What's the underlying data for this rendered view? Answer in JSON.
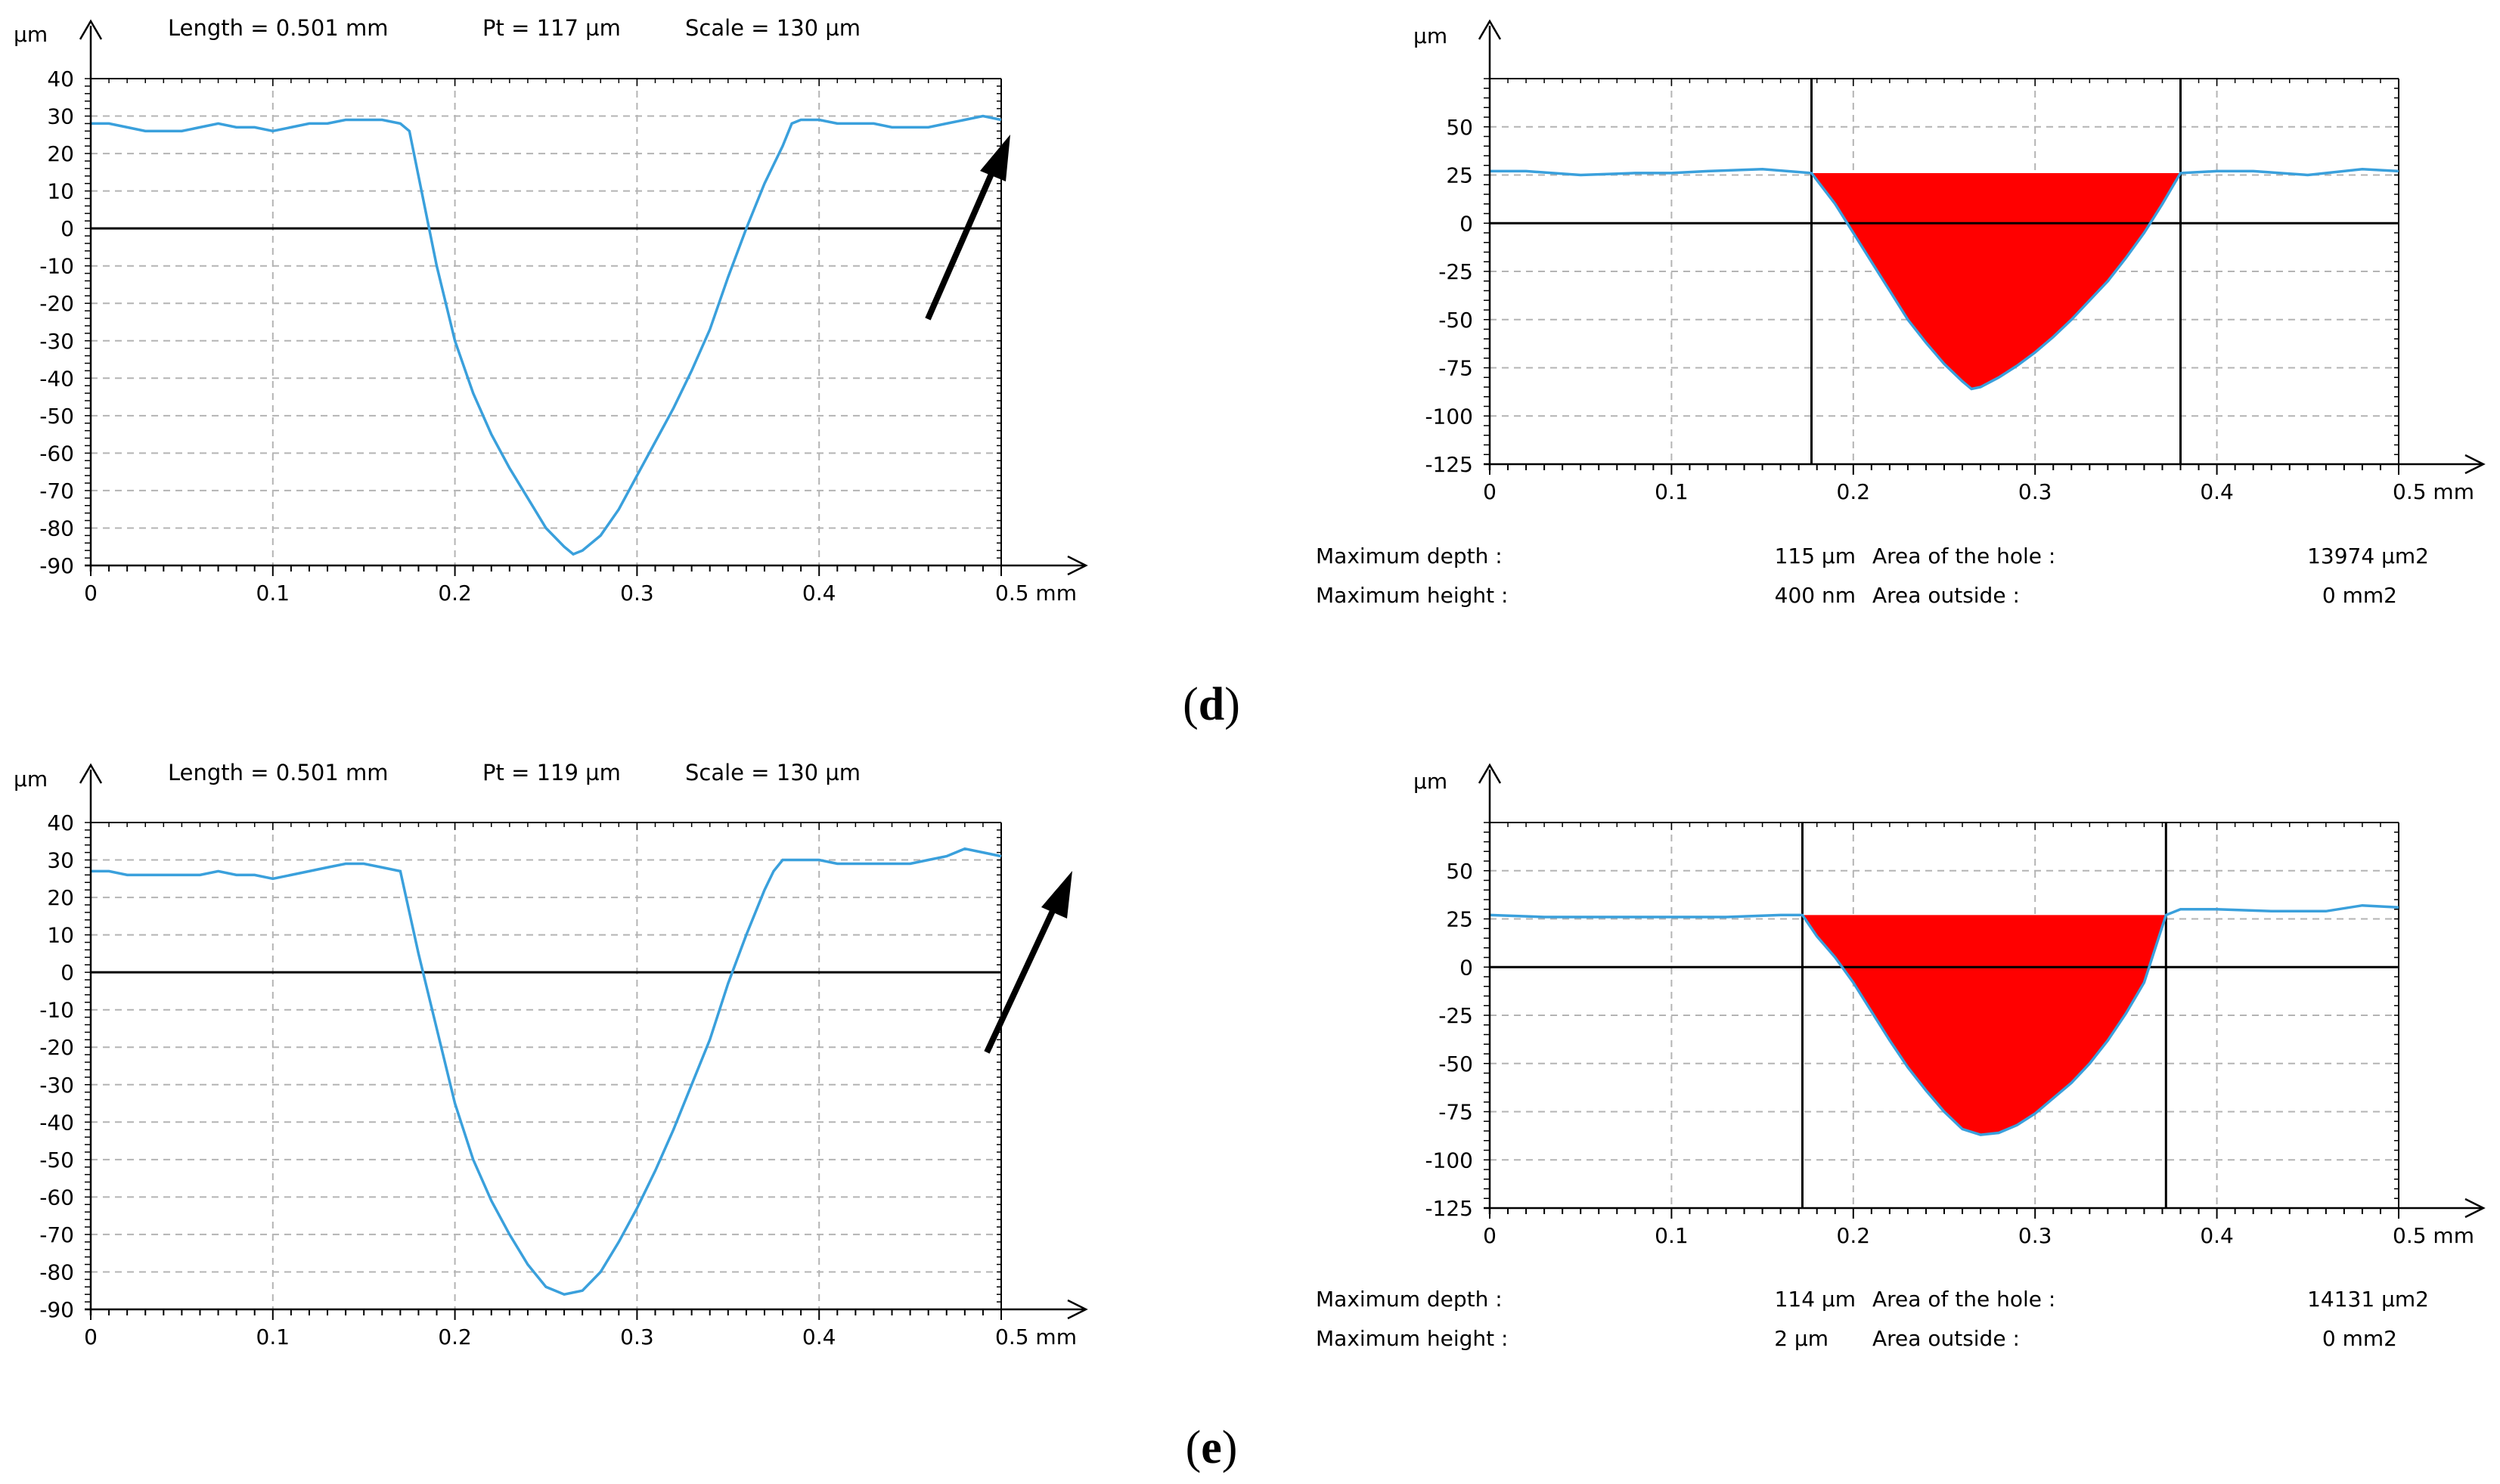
{
  "colors": {
    "profile": "#3aa0dc",
    "hole_fill": "#ff0000",
    "axis": "#000000",
    "grid": "#b4b4b4"
  },
  "panels": [
    {
      "label_open": "(",
      "label": "d",
      "label_close": ")",
      "left": {
        "ylabel": "µm",
        "xunit": "mm",
        "header": [
          "Length = 0.501 mm",
          "Pt = 117 µm",
          "Scale = 130 µm"
        ]
      },
      "right": {
        "ylabel": "µm",
        "xunit": "mm",
        "stats": [
          {
            "label": "Maximum depth :",
            "value": "115 µm",
            "label2": "Area of the hole :",
            "value2": "13974 µm2"
          },
          {
            "label": "Maximum height :",
            "value": "400 nm",
            "label2": "Area outside :",
            "value2": "0 mm2"
          }
        ]
      }
    },
    {
      "label_open": "(",
      "label": "e",
      "label_close": ")",
      "left": {
        "ylabel": "µm",
        "xunit": "mm",
        "header": [
          "Length = 0.501 mm",
          "Pt = 119 µm",
          "Scale = 130 µm"
        ]
      },
      "right": {
        "ylabel": "µm",
        "xunit": "mm",
        "stats": [
          {
            "label": "Maximum depth :",
            "value": "114 µm",
            "label2": "Area of the hole :",
            "value2": "14131 µm2"
          },
          {
            "label": "Maximum height :",
            "value": "2 µm",
            "label2": "Area outside :",
            "value2": "0 mm2"
          }
        ]
      }
    }
  ],
  "chart_data": [
    {
      "type": "line",
      "panel": "d-left",
      "title": "Length = 0.501 mm  Pt = 117 µm  Scale = 130 µm",
      "xlabel": "mm",
      "ylabel": "µm",
      "xlim": [
        0,
        0.5
      ],
      "ylim": [
        -90,
        40
      ],
      "xticks": [
        0,
        0.1,
        0.2,
        0.3,
        0.4,
        0.5
      ],
      "xtick_labels": [
        "0",
        "0.1",
        "0.2",
        "0.3",
        "0.4",
        "0.5 mm"
      ],
      "yticks": [
        40,
        30,
        20,
        10,
        0,
        -10,
        -20,
        -30,
        -40,
        -50,
        -60,
        -70,
        -80,
        -90
      ],
      "ytick_labels": [
        "40",
        "30",
        "20",
        "10",
        "0",
        "-10",
        "-20",
        "-30",
        "-40",
        "-50",
        "-60",
        "-70",
        "-80",
        "-90"
      ],
      "annotation": "arrow pointing to profile end",
      "x": [
        0,
        0.01,
        0.02,
        0.03,
        0.04,
        0.05,
        0.06,
        0.07,
        0.08,
        0.09,
        0.1,
        0.11,
        0.12,
        0.13,
        0.14,
        0.15,
        0.16,
        0.17,
        0.175,
        0.18,
        0.19,
        0.2,
        0.21,
        0.22,
        0.23,
        0.24,
        0.25,
        0.26,
        0.265,
        0.27,
        0.28,
        0.29,
        0.3,
        0.31,
        0.32,
        0.33,
        0.34,
        0.35,
        0.36,
        0.37,
        0.38,
        0.385,
        0.39,
        0.4,
        0.41,
        0.42,
        0.43,
        0.44,
        0.45,
        0.46,
        0.47,
        0.48,
        0.49,
        0.5
      ],
      "y": [
        28,
        28,
        27,
        26,
        26,
        26,
        27,
        28,
        27,
        27,
        26,
        27,
        28,
        28,
        29,
        29,
        29,
        28,
        26,
        14,
        -10,
        -30,
        -44,
        -55,
        -64,
        -72,
        -80,
        -85,
        -87,
        -86,
        -82,
        -75,
        -66,
        -57,
        -48,
        -38,
        -27,
        -13,
        0,
        12,
        22,
        28,
        29,
        29,
        28,
        28,
        28,
        27,
        27,
        27,
        28,
        29,
        30,
        29
      ]
    },
    {
      "type": "area",
      "panel": "d-right",
      "xlabel": "mm",
      "ylabel": "µm",
      "xlim": [
        0,
        0.5
      ],
      "ylim": [
        -125,
        75
      ],
      "xticks": [
        0,
        0.1,
        0.2,
        0.3,
        0.4,
        0.5
      ],
      "xtick_labels": [
        "0",
        "0.1",
        "0.2",
        "0.3",
        "0.4",
        "0.5 mm"
      ],
      "yticks": [
        50,
        25,
        0,
        -25,
        -50,
        -75,
        -100,
        -125
      ],
      "ytick_labels": [
        "50",
        "25",
        "0",
        "-25",
        "-50",
        "-75",
        "-100",
        "-125"
      ],
      "markers": [
        0.177,
        0.38
      ],
      "hole_fill_level": 26,
      "x": [
        0,
        0.02,
        0.05,
        0.08,
        0.1,
        0.12,
        0.15,
        0.177,
        0.19,
        0.2,
        0.21,
        0.22,
        0.23,
        0.24,
        0.25,
        0.26,
        0.265,
        0.27,
        0.28,
        0.29,
        0.3,
        0.31,
        0.32,
        0.33,
        0.34,
        0.35,
        0.36,
        0.37,
        0.38,
        0.4,
        0.42,
        0.45,
        0.48,
        0.5
      ],
      "y": [
        27,
        27,
        25,
        26,
        26,
        27,
        28,
        26,
        10,
        -5,
        -20,
        -35,
        -50,
        -62,
        -73,
        -82,
        -86,
        -85,
        -80,
        -74,
        -67,
        -59,
        -50,
        -40,
        -30,
        -18,
        -5,
        10,
        26,
        27,
        27,
        25,
        28,
        27
      ]
    },
    {
      "type": "line",
      "panel": "e-left",
      "title": "Length = 0.501 mm  Pt = 119 µm  Scale = 130 µm",
      "xlabel": "mm",
      "ylabel": "µm",
      "xlim": [
        0,
        0.5
      ],
      "ylim": [
        -90,
        40
      ],
      "xticks": [
        0,
        0.1,
        0.2,
        0.3,
        0.4,
        0.5
      ],
      "xtick_labels": [
        "0",
        "0.1",
        "0.2",
        "0.3",
        "0.4",
        "0.5 mm"
      ],
      "yticks": [
        40,
        30,
        20,
        10,
        0,
        -10,
        -20,
        -30,
        -40,
        -50,
        -60,
        -70,
        -80,
        -90
      ],
      "ytick_labels": [
        "40",
        "30",
        "20",
        "10",
        "0",
        "-10",
        "-20",
        "-30",
        "-40",
        "-50",
        "-60",
        "-70",
        "-80",
        "-90"
      ],
      "annotation": "arrow pointing to profile end",
      "x": [
        0,
        0.01,
        0.02,
        0.03,
        0.04,
        0.05,
        0.06,
        0.07,
        0.08,
        0.09,
        0.1,
        0.11,
        0.12,
        0.13,
        0.14,
        0.15,
        0.16,
        0.17,
        0.175,
        0.18,
        0.19,
        0.2,
        0.21,
        0.22,
        0.23,
        0.24,
        0.25,
        0.26,
        0.27,
        0.28,
        0.29,
        0.3,
        0.31,
        0.32,
        0.33,
        0.34,
        0.35,
        0.36,
        0.37,
        0.375,
        0.38,
        0.39,
        0.4,
        0.41,
        0.42,
        0.43,
        0.44,
        0.45,
        0.46,
        0.47,
        0.48,
        0.49,
        0.5
      ],
      "y": [
        27,
        27,
        26,
        26,
        26,
        26,
        26,
        27,
        26,
        26,
        25,
        26,
        27,
        28,
        29,
        29,
        28,
        27,
        16,
        5,
        -15,
        -35,
        -50,
        -61,
        -70,
        -78,
        -84,
        -86,
        -85,
        -80,
        -72,
        -63,
        -53,
        -42,
        -30,
        -18,
        -3,
        10,
        22,
        27,
        30,
        30,
        30,
        29,
        29,
        29,
        29,
        29,
        30,
        31,
        33,
        32,
        31
      ]
    },
    {
      "type": "area",
      "panel": "e-right",
      "xlabel": "mm",
      "ylabel": "µm",
      "xlim": [
        0,
        0.5
      ],
      "ylim": [
        -125,
        75
      ],
      "xticks": [
        0,
        0.1,
        0.2,
        0.3,
        0.4,
        0.5
      ],
      "xtick_labels": [
        "0",
        "0.1",
        "0.2",
        "0.3",
        "0.4",
        "0.5 mm"
      ],
      "yticks": [
        50,
        25,
        0,
        -25,
        -50,
        -75,
        -100,
        -125
      ],
      "ytick_labels": [
        "50",
        "25",
        "0",
        "-25",
        "-50",
        "-75",
        "-100",
        "-125"
      ],
      "markers": [
        0.172,
        0.372
      ],
      "hole_fill_level": 27,
      "x": [
        0,
        0.03,
        0.06,
        0.1,
        0.13,
        0.16,
        0.172,
        0.18,
        0.19,
        0.2,
        0.21,
        0.22,
        0.23,
        0.24,
        0.25,
        0.26,
        0.27,
        0.28,
        0.29,
        0.3,
        0.31,
        0.32,
        0.33,
        0.34,
        0.35,
        0.36,
        0.372,
        0.38,
        0.4,
        0.43,
        0.46,
        0.48,
        0.5
      ],
      "y": [
        27,
        26,
        26,
        26,
        26,
        27,
        27,
        16,
        5,
        -8,
        -23,
        -38,
        -52,
        -64,
        -75,
        -84,
        -87,
        -86,
        -82,
        -76,
        -68,
        -60,
        -50,
        -38,
        -24,
        -8,
        27,
        30,
        30,
        29,
        29,
        32,
        31
      ]
    }
  ]
}
